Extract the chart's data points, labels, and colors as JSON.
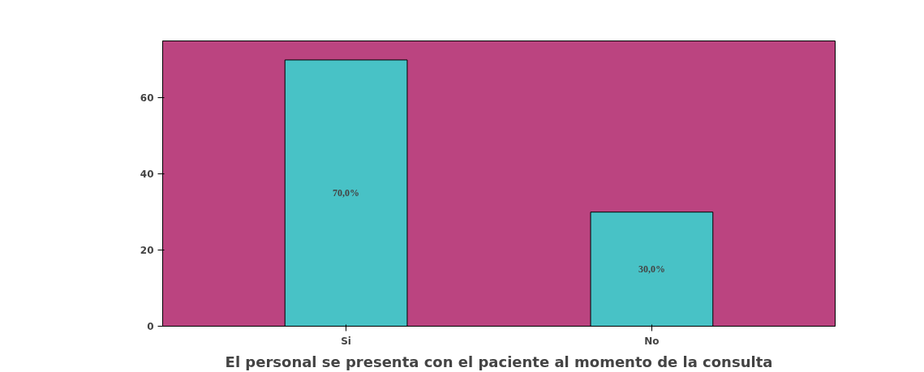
{
  "chart_data": {
    "type": "bar",
    "xlabel": "El personal se presenta con el paciente al momento de la consulta",
    "categories": [
      "Si",
      "No"
    ],
    "values": [
      70,
      30
    ],
    "value_labels": [
      "70,0%",
      "30,0%"
    ],
    "color": "#48c2c6",
    "ylim": [
      0,
      75
    ],
    "yticks": [
      0,
      20,
      40,
      60
    ],
    "grid": false
  }
}
